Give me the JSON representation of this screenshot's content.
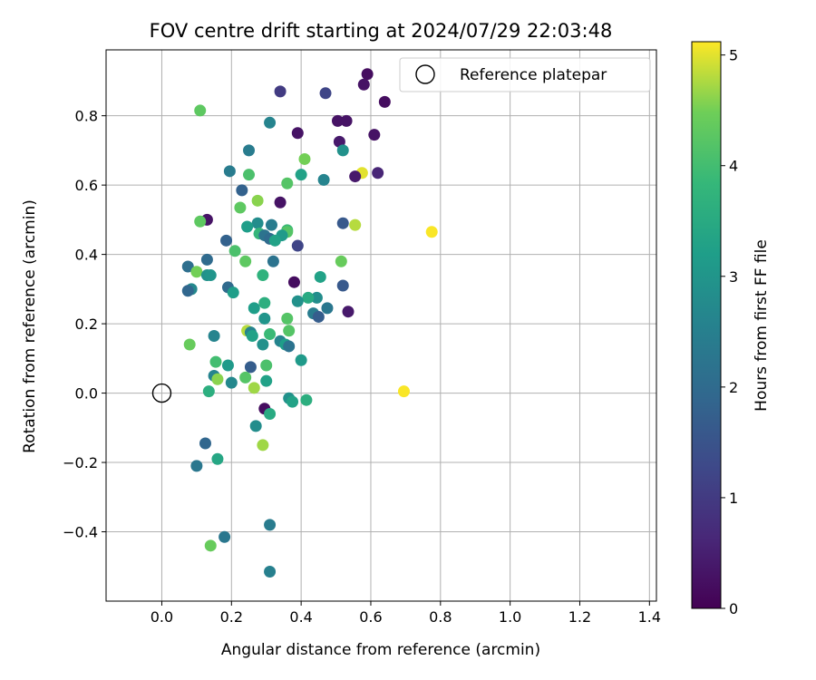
{
  "chart_data": {
    "type": "scatter",
    "title": "FOV centre drift starting at 2024/07/29 22:03:48",
    "xlabel": "Angular distance from reference (arcmin)",
    "ylabel": "Rotation from reference (arcmin)",
    "xlim": [
      -0.16,
      1.42
    ],
    "ylim": [
      -0.6,
      0.99
    ],
    "x_ticks": [
      0.0,
      0.2,
      0.4,
      0.6,
      0.8,
      1.0,
      1.2,
      1.4
    ],
    "x_tick_labels": [
      "0.0",
      "0.2",
      "0.4",
      "0.6",
      "0.8",
      "1.0",
      "1.2",
      "1.4"
    ],
    "y_ticks": [
      -0.4,
      -0.2,
      0.0,
      0.2,
      0.4,
      0.6,
      0.8
    ],
    "y_tick_labels": [
      "−0.4",
      "−0.2",
      "0.0",
      "0.2",
      "0.4",
      "0.6",
      "0.8"
    ],
    "grid": true,
    "legend": {
      "position": "top-right",
      "label": "Reference platepar"
    },
    "reference_point": {
      "x": 0.0,
      "y": 0.0
    },
    "colorbar": {
      "label": "Hours from first FF file",
      "range": [
        0,
        5.12
      ],
      "ticks": [
        0,
        1,
        2,
        3,
        4,
        5
      ],
      "tick_labels": [
        "0",
        "1",
        "2",
        "3",
        "4",
        "5"
      ],
      "colormap": "viridis"
    },
    "points": [
      {
        "x": 0.59,
        "y": 0.92,
        "h": 0.2
      },
      {
        "x": 0.64,
        "y": 0.84,
        "h": 0.2
      },
      {
        "x": 0.58,
        "y": 0.89,
        "h": 0.3
      },
      {
        "x": 0.34,
        "y": 0.87,
        "h": 1.0
      },
      {
        "x": 0.47,
        "y": 0.865,
        "h": 1.2
      },
      {
        "x": 0.11,
        "y": 0.815,
        "h": 4.3
      },
      {
        "x": 0.505,
        "y": 0.785,
        "h": 0.3
      },
      {
        "x": 0.53,
        "y": 0.785,
        "h": 0.3
      },
      {
        "x": 0.31,
        "y": 0.78,
        "h": 2.6
      },
      {
        "x": 0.39,
        "y": 0.75,
        "h": 0.3
      },
      {
        "x": 0.61,
        "y": 0.745,
        "h": 0.3
      },
      {
        "x": 0.51,
        "y": 0.725,
        "h": 0.4
      },
      {
        "x": 0.25,
        "y": 0.7,
        "h": 2.4
      },
      {
        "x": 0.52,
        "y": 0.7,
        "h": 2.9
      },
      {
        "x": 0.41,
        "y": 0.675,
        "h": 4.5
      },
      {
        "x": 0.195,
        "y": 0.64,
        "h": 2.4
      },
      {
        "x": 0.25,
        "y": 0.63,
        "h": 4.1
      },
      {
        "x": 0.4,
        "y": 0.63,
        "h": 3.3
      },
      {
        "x": 0.575,
        "y": 0.635,
        "h": 5.0
      },
      {
        "x": 0.62,
        "y": 0.635,
        "h": 0.6
      },
      {
        "x": 0.555,
        "y": 0.625,
        "h": 0.4
      },
      {
        "x": 0.465,
        "y": 0.615,
        "h": 2.6
      },
      {
        "x": 0.36,
        "y": 0.605,
        "h": 4.2
      },
      {
        "x": 0.23,
        "y": 0.585,
        "h": 1.8
      },
      {
        "x": 0.275,
        "y": 0.555,
        "h": 4.6
      },
      {
        "x": 0.34,
        "y": 0.55,
        "h": 0.3
      },
      {
        "x": 0.225,
        "y": 0.535,
        "h": 4.3
      },
      {
        "x": 0.13,
        "y": 0.5,
        "h": 0.3
      },
      {
        "x": 0.11,
        "y": 0.495,
        "h": 4.3
      },
      {
        "x": 0.275,
        "y": 0.49,
        "h": 2.8
      },
      {
        "x": 0.52,
        "y": 0.49,
        "h": 1.6
      },
      {
        "x": 0.315,
        "y": 0.485,
        "h": 2.4
      },
      {
        "x": 0.555,
        "y": 0.485,
        "h": 4.8
      },
      {
        "x": 0.245,
        "y": 0.48,
        "h": 3.2
      },
      {
        "x": 0.36,
        "y": 0.47,
        "h": 3.9
      },
      {
        "x": 0.775,
        "y": 0.465,
        "h": 5.1
      },
      {
        "x": 0.36,
        "y": 0.465,
        "h": 4.2
      },
      {
        "x": 0.28,
        "y": 0.46,
        "h": 3.8
      },
      {
        "x": 0.295,
        "y": 0.455,
        "h": 2.2
      },
      {
        "x": 0.345,
        "y": 0.455,
        "h": 3.1
      },
      {
        "x": 0.31,
        "y": 0.445,
        "h": 2.0
      },
      {
        "x": 0.325,
        "y": 0.44,
        "h": 3.3
      },
      {
        "x": 0.185,
        "y": 0.44,
        "h": 1.8
      },
      {
        "x": 0.39,
        "y": 0.425,
        "h": 1.2
      },
      {
        "x": 0.21,
        "y": 0.41,
        "h": 4.1
      },
      {
        "x": 0.13,
        "y": 0.385,
        "h": 2.0
      },
      {
        "x": 0.24,
        "y": 0.38,
        "h": 4.3
      },
      {
        "x": 0.32,
        "y": 0.38,
        "h": 2.2
      },
      {
        "x": 0.515,
        "y": 0.38,
        "h": 4.4
      },
      {
        "x": 0.075,
        "y": 0.365,
        "h": 2.1
      },
      {
        "x": 0.1,
        "y": 0.35,
        "h": 4.5
      },
      {
        "x": 0.13,
        "y": 0.34,
        "h": 2.9
      },
      {
        "x": 0.14,
        "y": 0.34,
        "h": 3.0
      },
      {
        "x": 0.29,
        "y": 0.34,
        "h": 3.7
      },
      {
        "x": 0.455,
        "y": 0.335,
        "h": 3.3
      },
      {
        "x": 0.38,
        "y": 0.32,
        "h": 0.2
      },
      {
        "x": 0.52,
        "y": 0.31,
        "h": 1.6
      },
      {
        "x": 0.19,
        "y": 0.305,
        "h": 2.0
      },
      {
        "x": 0.085,
        "y": 0.3,
        "h": 2.7
      },
      {
        "x": 0.075,
        "y": 0.295,
        "h": 1.9
      },
      {
        "x": 0.205,
        "y": 0.29,
        "h": 3.2
      },
      {
        "x": 0.445,
        "y": 0.275,
        "h": 2.8
      },
      {
        "x": 0.42,
        "y": 0.275,
        "h": 3.5
      },
      {
        "x": 0.39,
        "y": 0.265,
        "h": 2.9
      },
      {
        "x": 0.295,
        "y": 0.26,
        "h": 3.6
      },
      {
        "x": 0.265,
        "y": 0.245,
        "h": 3.2
      },
      {
        "x": 0.475,
        "y": 0.245,
        "h": 2.3
      },
      {
        "x": 0.535,
        "y": 0.235,
        "h": 0.4
      },
      {
        "x": 0.435,
        "y": 0.23,
        "h": 2.4
      },
      {
        "x": 0.45,
        "y": 0.22,
        "h": 1.7
      },
      {
        "x": 0.295,
        "y": 0.215,
        "h": 3.0
      },
      {
        "x": 0.36,
        "y": 0.215,
        "h": 4.2
      },
      {
        "x": 0.245,
        "y": 0.18,
        "h": 4.8
      },
      {
        "x": 0.365,
        "y": 0.18,
        "h": 4.2
      },
      {
        "x": 0.255,
        "y": 0.175,
        "h": 2.6
      },
      {
        "x": 0.26,
        "y": 0.165,
        "h": 3.3
      },
      {
        "x": 0.15,
        "y": 0.165,
        "h": 2.6
      },
      {
        "x": 0.31,
        "y": 0.17,
        "h": 3.9
      },
      {
        "x": 0.34,
        "y": 0.15,
        "h": 2.6
      },
      {
        "x": 0.355,
        "y": 0.14,
        "h": 3.2
      },
      {
        "x": 0.29,
        "y": 0.14,
        "h": 2.9
      },
      {
        "x": 0.365,
        "y": 0.135,
        "h": 2.2
      },
      {
        "x": 0.08,
        "y": 0.14,
        "h": 4.4
      },
      {
        "x": 0.4,
        "y": 0.095,
        "h": 3.1
      },
      {
        "x": 0.155,
        "y": 0.09,
        "h": 4.0
      },
      {
        "x": 0.19,
        "y": 0.08,
        "h": 3.1
      },
      {
        "x": 0.255,
        "y": 0.075,
        "h": 1.7
      },
      {
        "x": 0.3,
        "y": 0.08,
        "h": 4.1
      },
      {
        "x": 0.15,
        "y": 0.05,
        "h": 2.6
      },
      {
        "x": 0.24,
        "y": 0.045,
        "h": 4.2
      },
      {
        "x": 0.16,
        "y": 0.04,
        "h": 4.6
      },
      {
        "x": 0.3,
        "y": 0.035,
        "h": 3.3
      },
      {
        "x": 0.2,
        "y": 0.03,
        "h": 2.7
      },
      {
        "x": 0.265,
        "y": 0.015,
        "h": 4.7
      },
      {
        "x": 0.135,
        "y": 0.005,
        "h": 3.6
      },
      {
        "x": 0.695,
        "y": 0.005,
        "h": 5.1
      },
      {
        "x": 0.365,
        "y": -0.015,
        "h": 2.9
      },
      {
        "x": 0.415,
        "y": -0.02,
        "h": 3.6
      },
      {
        "x": 0.375,
        "y": -0.025,
        "h": 3.3
      },
      {
        "x": 0.295,
        "y": -0.045,
        "h": 0.2
      },
      {
        "x": 0.31,
        "y": -0.06,
        "h": 3.5
      },
      {
        "x": 0.27,
        "y": -0.095,
        "h": 2.8
      },
      {
        "x": 0.125,
        "y": -0.145,
        "h": 1.9
      },
      {
        "x": 0.29,
        "y": -0.15,
        "h": 4.7
      },
      {
        "x": 0.16,
        "y": -0.19,
        "h": 3.4
      },
      {
        "x": 0.1,
        "y": -0.21,
        "h": 2.3
      },
      {
        "x": 0.31,
        "y": -0.38,
        "h": 2.4
      },
      {
        "x": 0.18,
        "y": -0.415,
        "h": 2.3
      },
      {
        "x": 0.14,
        "y": -0.44,
        "h": 4.4
      },
      {
        "x": 0.31,
        "y": -0.515,
        "h": 2.5
      }
    ]
  }
}
